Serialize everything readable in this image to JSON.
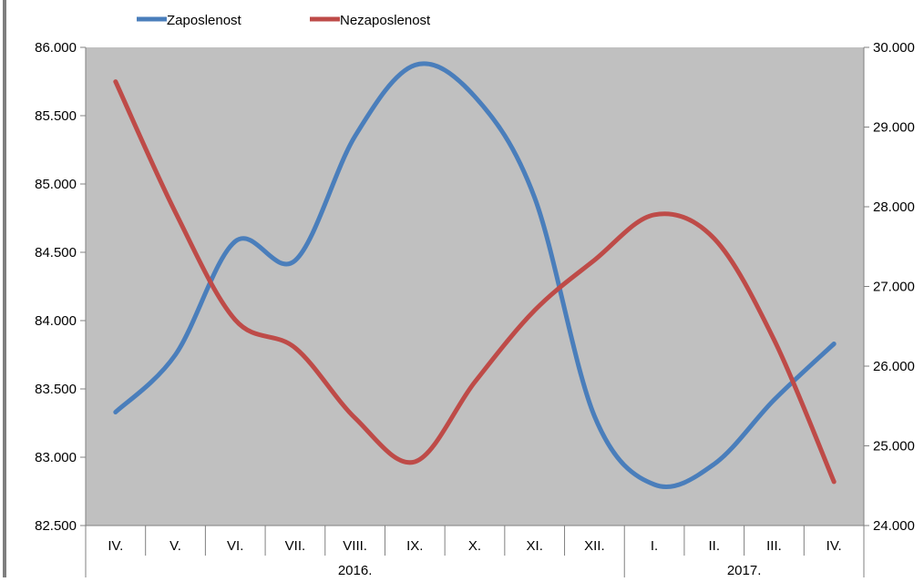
{
  "chart_data": {
    "type": "line",
    "title": "",
    "categories": [
      "IV.",
      "V.",
      "VI.",
      "VII.",
      "VIII.",
      "IX.",
      "X.",
      "XI.",
      "XII.",
      "I.",
      "II.",
      "III.",
      "IV."
    ],
    "year_groups": [
      {
        "label": "2016.",
        "span": 9
      },
      {
        "label": "2017.",
        "span": 4
      }
    ],
    "y_left": {
      "min": 82500,
      "max": 86000,
      "step": 500,
      "tick_labels": [
        "82.500",
        "83.000",
        "83.500",
        "84.000",
        "84.500",
        "85.000",
        "85.500",
        "86.000"
      ]
    },
    "y_right": {
      "min": 24000,
      "max": 30000,
      "step": 1000,
      "tick_labels": [
        "24.000",
        "25.000",
        "26.000",
        "27.000",
        "28.000",
        "29.000",
        "30.000"
      ]
    },
    "series": [
      {
        "name": "Zaposlenost",
        "axis": "left",
        "color": "#4A7EBB",
        "values": [
          83330,
          83750,
          84580,
          84440,
          85350,
          85870,
          85640,
          84900,
          83300,
          82800,
          82950,
          83420,
          83830
        ]
      },
      {
        "name": "Nezaposlenost",
        "axis": "right",
        "color": "#BE4B48",
        "values": [
          29570,
          27930,
          26580,
          26230,
          25350,
          24800,
          25800,
          26700,
          27330,
          27900,
          27600,
          26330,
          24550
        ]
      }
    ],
    "legend_position": "top-left",
    "plot_background": "#C0C0C0",
    "grid": false
  }
}
